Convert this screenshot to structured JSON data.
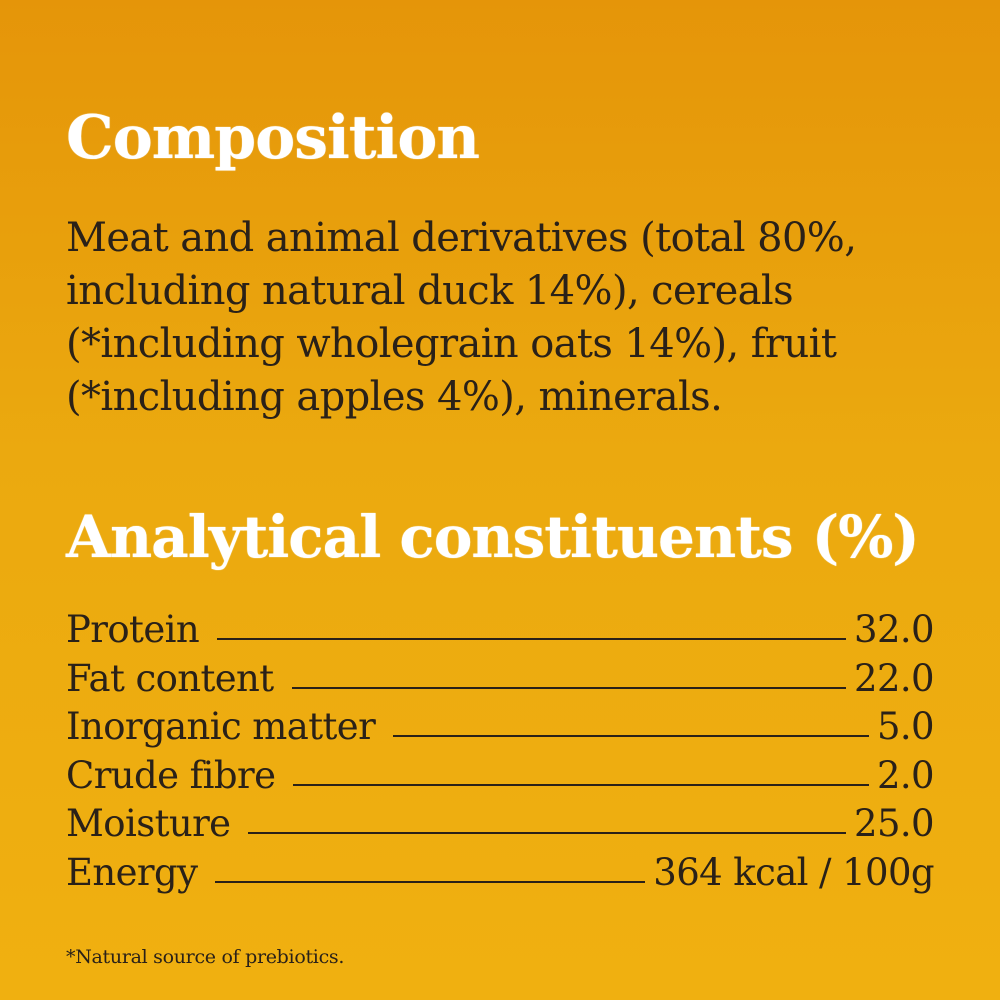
{
  "composition": {
    "heading": "Composition",
    "text": "Meat and animal derivatives (total 80%, including natural duck 14%), cereals (*including wholegrain oats 14%), fruit (*including apples 4%), minerals."
  },
  "analytical": {
    "heading": "Analytical constituents (%)",
    "rows": [
      {
        "label": "Protein",
        "value": "32.0"
      },
      {
        "label": "Fat content",
        "value": "22.0"
      },
      {
        "label": "Inorganic matter",
        "value": "5.0"
      },
      {
        "label": "Crude fibre",
        "value": "2.0"
      },
      {
        "label": "Moisture",
        "value": "25.0"
      },
      {
        "label": "Energy",
        "value": "364 kcal / 100g"
      }
    ]
  },
  "footnote": "*Natural source of prebiotics.",
  "colors": {
    "background_top": "#e59509",
    "background_bottom": "#f0b010",
    "heading": "#ffffff",
    "text": "#2a2118"
  }
}
